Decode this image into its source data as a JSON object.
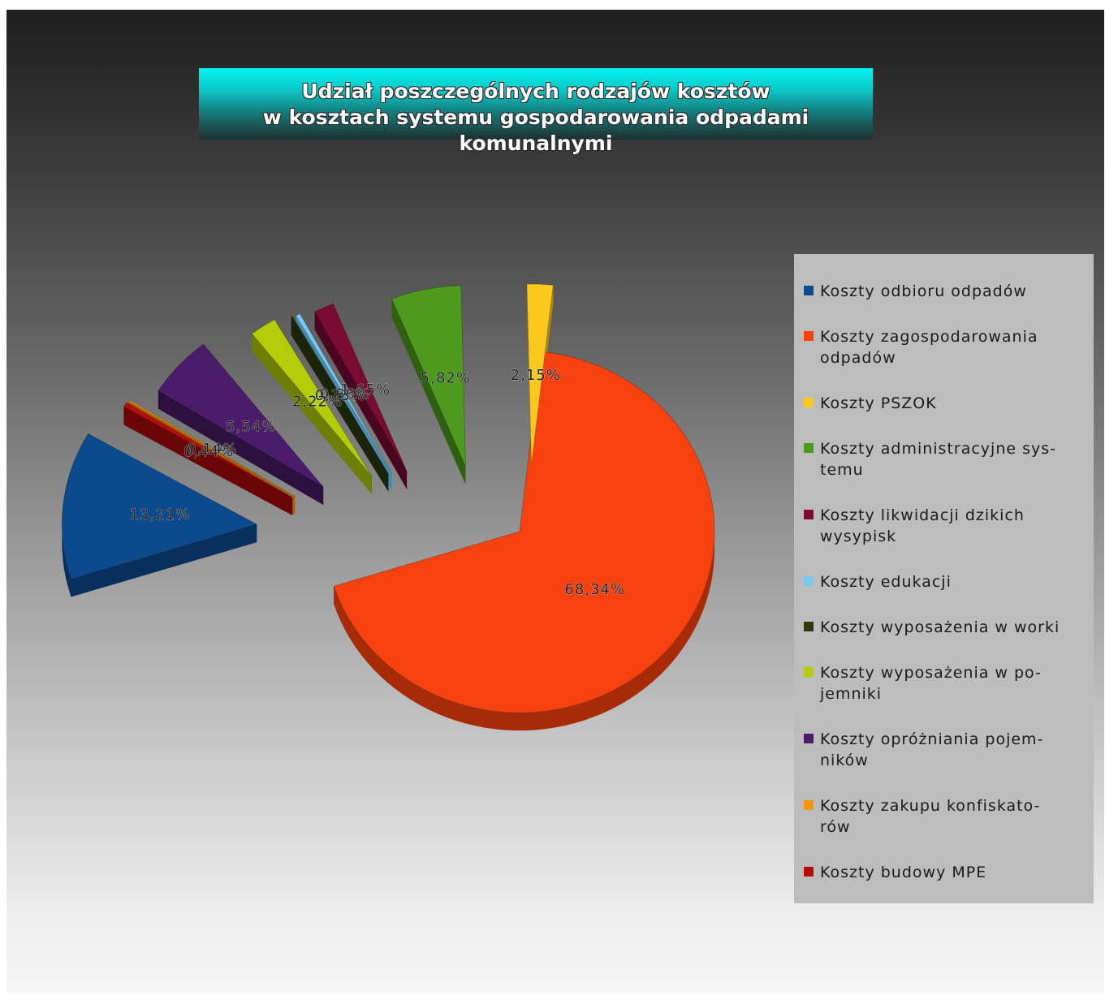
{
  "chart_data": {
    "type": "pie",
    "title_lines": [
      "Udział poszczególnych rodzajów kosztów",
      "w kosztach systemu gospodarowania odpadami komunalnymi"
    ],
    "legend_position": "right",
    "exploded": true,
    "slices": [
      {
        "label": "Koszty odbioru odpadów",
        "legend_text": "Koszty odbioru odpadów",
        "value": 13.21,
        "value_label": "13,21%",
        "color": "#0b4a8c",
        "side": "#08305c"
      },
      {
        "label": "Koszty zagospodarowania odpadów",
        "legend_text": "Koszty zagospodarowania\nodpadów",
        "value": 68.34,
        "value_label": "68,34%",
        "color": "#f7410f",
        "side": "#a82b08"
      },
      {
        "label": "Koszty PSZOK",
        "legend_text": "Koszty PSZOK",
        "value": 2.15,
        "value_label": "2,15%",
        "color": "#fbc81d",
        "side": "#b08a0f"
      },
      {
        "label": "Koszty administracyjne systemu",
        "legend_text": "Koszty administracyjne sys-\ntemu",
        "value": 5.82,
        "value_label": "5,82%",
        "color": "#4e9a1e",
        "side": "#2f6010"
      },
      {
        "label": "Koszty likwidacji dzikich wysypisk",
        "legend_text": "Koszty likwidacji dzikich\nwysypisk",
        "value": 1.65,
        "value_label": "1,65%",
        "color": "#7a0b32",
        "side": "#4a0620"
      },
      {
        "label": "Koszty edukacji",
        "legend_text": "Koszty edukacji",
        "value": 0.36,
        "value_label": "0,36%",
        "color": "#7cc8ee",
        "side": "#4a8ab0"
      },
      {
        "label": "Koszty wyposażenia w worki",
        "legend_text": "Koszty wyposażenia w worki",
        "value": 0.13,
        "value_label": "0,13%",
        "color": "#2c3a0e",
        "side": "#1a2408"
      },
      {
        "label": "Koszty wyposażenia w pojemniki",
        "legend_text": "Koszty wyposażenia w po-\njemniki",
        "value": 2.22,
        "value_label": "2,22%",
        "color": "#b4cc0a",
        "side": "#6f7f05"
      },
      {
        "label": "Koszty opróżniania pojemników",
        "legend_text": "Koszty opróżniania pojem-\nników",
        "value": 5.54,
        "value_label": "5,54%",
        "color": "#4a1c6a",
        "side": "#2c1040"
      },
      {
        "label": "Koszty zakupu konfiskatorów",
        "legend_text": "Koszty zakupu konfiskato-\nrów",
        "value": 0.14,
        "value_label": "0,14%",
        "color": "#f5960d",
        "side": "#a86205"
      },
      {
        "label": "Koszty budowy MPE",
        "legend_text": "Koszty budowy MPE",
        "value": 0.44,
        "value_label": "0,44%",
        "color": "#b50d0d",
        "side": "#6a0606"
      }
    ]
  }
}
